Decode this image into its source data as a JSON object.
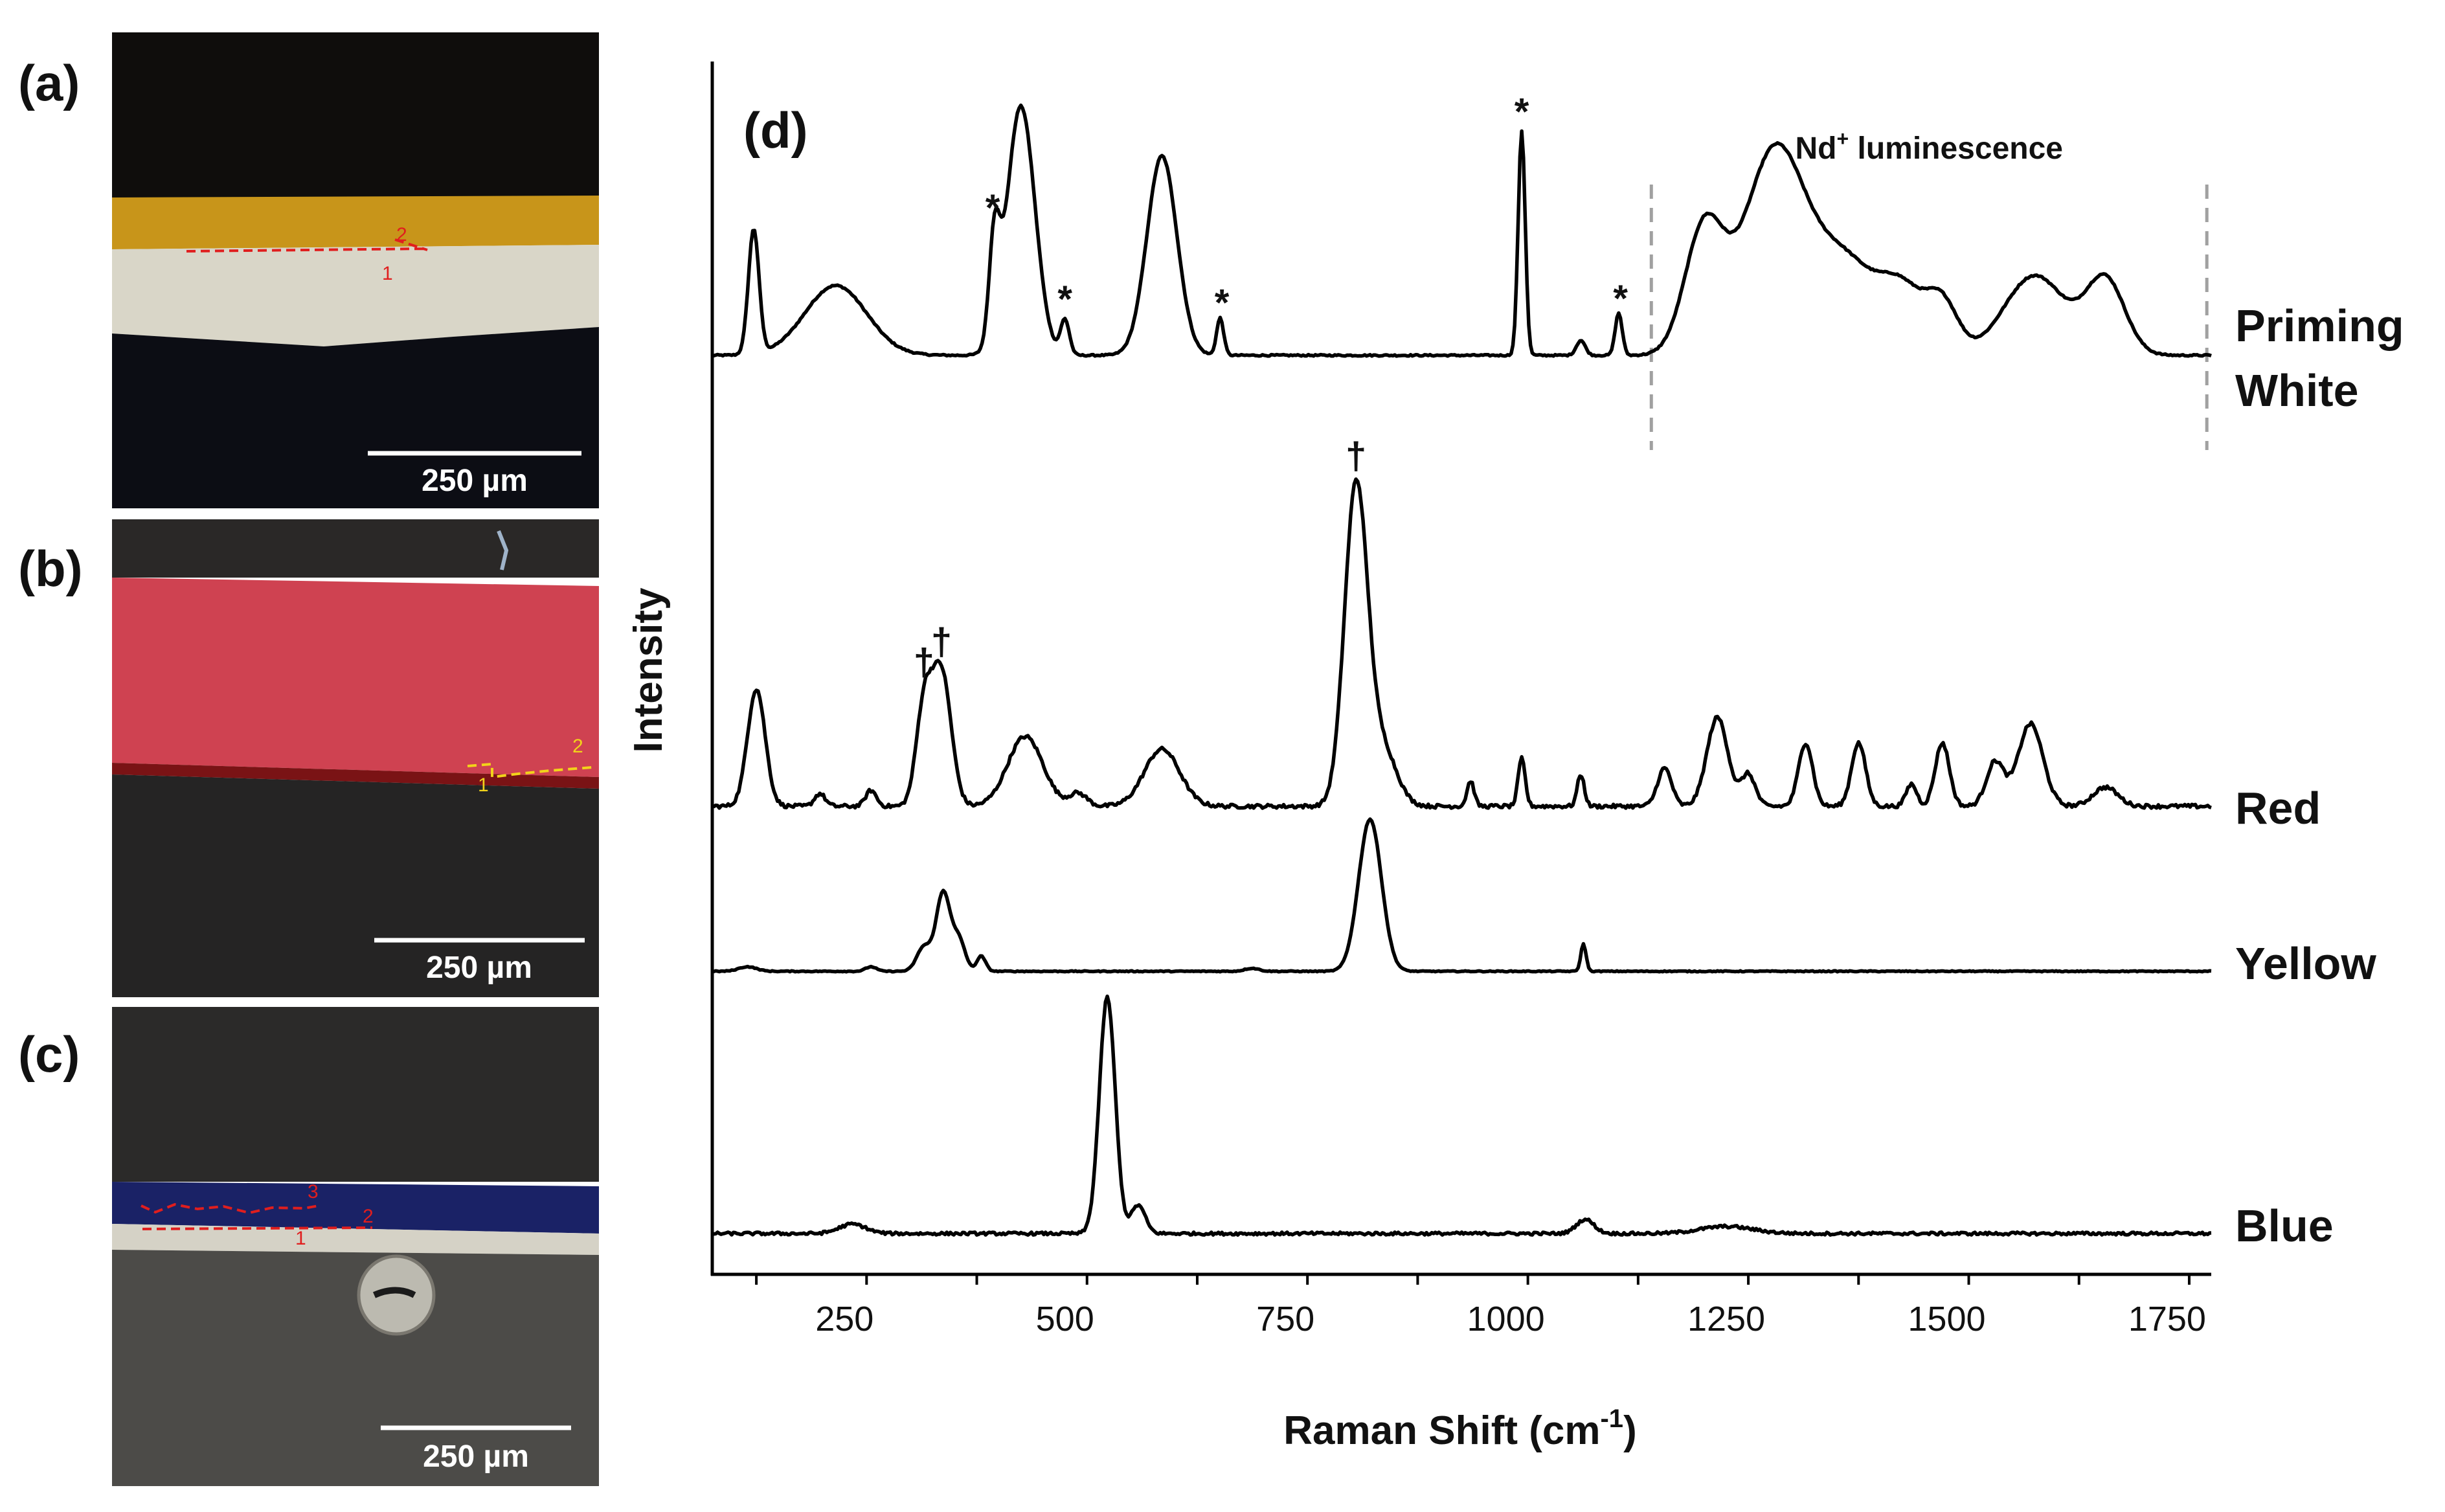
{
  "panels": {
    "a": {
      "label": "(a)",
      "scale_label": "250 µm",
      "layer_numbers": [
        "1",
        "2"
      ],
      "layers": [
        {
          "name": "dark background",
          "color": "#0f0d0c"
        },
        {
          "name": "yellow layer",
          "color": "#c8951a"
        },
        {
          "name": "priming white",
          "color": "#d9d6c8"
        },
        {
          "name": "dark background",
          "color": "#0c0d14"
        }
      ],
      "marker_color": "#e01e1e"
    },
    "b": {
      "label": "(b)",
      "scale_label": "250 µm",
      "layer_numbers": [
        "1",
        "2"
      ],
      "layers": [
        {
          "name": "dark top",
          "color": "#2a2827"
        },
        {
          "name": "red layer",
          "color": "#cf4251"
        },
        {
          "name": "dark red line",
          "color": "#7a1315"
        },
        {
          "name": "dark bottom",
          "color": "#252424"
        }
      ],
      "marker_color": "#f2d31a"
    },
    "c": {
      "label": "(c)",
      "scale_label": "250 µm",
      "layer_numbers": [
        "1",
        "2",
        "3"
      ],
      "layers": [
        {
          "name": "dark top",
          "color": "#2b2a29"
        },
        {
          "name": "blue layer",
          "color": "#1a2266"
        },
        {
          "name": "white layer",
          "color": "#d5d2c6"
        },
        {
          "name": "grey bottom",
          "color": "#4c4b48"
        }
      ],
      "marker_color": "#e01e1e"
    }
  },
  "chart_data": {
    "type": "line",
    "panel_label": "(d)",
    "title": "",
    "xlabel": "Raman Shift (cm",
    "xlabel_sup": "-1",
    "xlabel_end": ")",
    "ylabel": "Intensity",
    "xlim": [
      100,
      1800
    ],
    "x_ticks": [
      250,
      500,
      750,
      1000,
      1250,
      1500,
      1750
    ],
    "x_tick_labels": [
      "250",
      "500",
      "750",
      "1000",
      "1250",
      "1500",
      "1750"
    ],
    "series": [
      {
        "name": "Priming White",
        "label_lines": [
          "Priming",
          "White"
        ],
        "baseline": 0.05,
        "noise": 0.006,
        "peaks": [
          [
            147,
            0.5,
            6
          ],
          [
            240,
            0.28,
            35
          ],
          [
            420,
            0.4,
            6
          ],
          [
            450,
            1.0,
            16
          ],
          [
            500,
            0.14,
            5
          ],
          [
            610,
            0.8,
            17
          ],
          [
            676,
            0.15,
            4
          ],
          [
            1018,
            0.9,
            4
          ],
          [
            1085,
            0.06,
            5
          ],
          [
            1128,
            0.17,
            4
          ],
          [
            1225,
            0.5,
            22
          ],
          [
            1305,
            0.82,
            35
          ],
          [
            1385,
            0.36,
            35
          ],
          [
            1450,
            0.24,
            25
          ],
          [
            1495,
            0.2,
            18
          ],
          [
            1600,
            0.32,
            35
          ],
          [
            1680,
            0.3,
            22
          ]
        ],
        "markers": [
          {
            "x": 418,
            "symbol": "*"
          },
          {
            "x": 500,
            "symbol": "*"
          },
          {
            "x": 678,
            "symbol": "*"
          },
          {
            "x": 1018,
            "symbol": "*"
          },
          {
            "x": 1130,
            "symbol": "*"
          }
        ]
      },
      {
        "name": "Red",
        "label_lines": [
          "Red"
        ],
        "baseline": 0.01,
        "noise": 0.012,
        "peaks": [
          [
            150,
            0.37,
            10
          ],
          [
            222,
            0.04,
            6
          ],
          [
            280,
            0.05,
            6
          ],
          [
            340,
            0.3,
            9
          ],
          [
            360,
            0.42,
            11
          ],
          [
            455,
            0.22,
            20
          ],
          [
            515,
            0.04,
            10
          ],
          [
            610,
            0.18,
            20
          ],
          [
            830,
            1.0,
            13
          ],
          [
            860,
            0.18,
            16
          ],
          [
            960,
            0.08,
            4
          ],
          [
            1018,
            0.15,
            4
          ],
          [
            1085,
            0.1,
            4
          ],
          [
            1180,
            0.12,
            8
          ],
          [
            1240,
            0.28,
            12
          ],
          [
            1275,
            0.1,
            8
          ],
          [
            1340,
            0.2,
            8
          ],
          [
            1400,
            0.2,
            8
          ],
          [
            1460,
            0.07,
            6
          ],
          [
            1495,
            0.2,
            8
          ],
          [
            1555,
            0.14,
            10
          ],
          [
            1595,
            0.26,
            14
          ],
          [
            1680,
            0.06,
            14
          ]
        ],
        "markers": [
          {
            "x": 340,
            "symbol": "†"
          },
          {
            "x": 360,
            "symbol": "†"
          },
          {
            "x": 830,
            "symbol": "†"
          }
        ]
      },
      {
        "name": "Yellow",
        "label_lines": [
          "Yellow"
        ],
        "baseline": 0.0,
        "noise": 0.006,
        "peaks": [
          [
            140,
            0.03,
            10
          ],
          [
            280,
            0.03,
            6
          ],
          [
            340,
            0.16,
            8
          ],
          [
            362,
            0.52,
            8
          ],
          [
            380,
            0.2,
            7
          ],
          [
            405,
            0.1,
            5
          ],
          [
            712,
            0.02,
            8
          ],
          [
            846,
            1.0,
            13
          ],
          [
            1088,
            0.18,
            3
          ]
        ],
        "markers": []
      },
      {
        "name": "Blue",
        "label_lines": [
          "Blue"
        ],
        "baseline": 0.0,
        "noise": 0.012,
        "peaks": [
          [
            259,
            0.04,
            15
          ],
          [
            548,
            1.0,
            9
          ],
          [
            583,
            0.12,
            8
          ],
          [
            1090,
            0.06,
            10
          ],
          [
            1250,
            0.03,
            30
          ]
        ],
        "markers": []
      }
    ],
    "annotations": [
      {
        "text": "Nd",
        "sup": "+",
        "rest": " luminescence",
        "x_range": [
          1165,
          1795
        ]
      }
    ]
  }
}
